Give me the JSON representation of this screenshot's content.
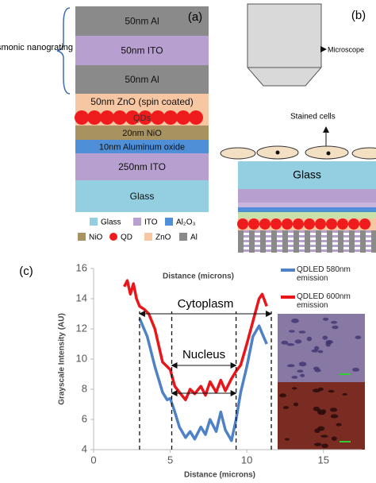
{
  "panel_a": {
    "label": "(a)",
    "bracket_label": "Plasmonic nanograting",
    "layers": [
      {
        "label": "50nm Al",
        "color": "#8a8a8a"
      },
      {
        "label": "50nm ITO",
        "color": "#b7a0d0"
      },
      {
        "label": "50nm Al",
        "color": "#8a8a8a"
      },
      {
        "label": "50nm ZnO (spin coated)",
        "color": "#f7c6a2"
      },
      {
        "label": "QDs",
        "color": "#ee1c1c"
      },
      {
        "label": "20nm NiO",
        "color": "#a8925f"
      },
      {
        "label": "10nm Aluminum oxide",
        "color": "#4e8fd8"
      },
      {
        "label": "250nm ITO",
        "color": "#b7a0d0"
      },
      {
        "label": "Glass",
        "color": "#93cfe0"
      }
    ],
    "legend": [
      {
        "label": "Glass",
        "color": "#93cfe0"
      },
      {
        "label": "ITO",
        "color": "#b7a0d0"
      },
      {
        "label": "Al₂O₃",
        "color": "#4e8fd8"
      },
      {
        "label": "NiO",
        "color": "#a8925f"
      },
      {
        "label": "QD",
        "color": "#ee1c1c"
      },
      {
        "label": "ZnO",
        "color": "#f7c6a2"
      },
      {
        "label": "Al",
        "color": "#8a8a8a"
      }
    ]
  },
  "panel_b": {
    "label": "(b)",
    "microscope_label": "Microscope",
    "cells_label": "Stained cells",
    "glass_label": "Glass"
  },
  "chart_data": {
    "type": "line",
    "panel_label": "(c)",
    "title": "Distance (microns)",
    "x_label": "Distance (microns)",
    "y_label": "Grayscale Intensity (AU)",
    "xlim": [
      0,
      17.5
    ],
    "ylim": [
      4,
      16
    ],
    "xticks": [
      0,
      5,
      10,
      15
    ],
    "yticks": [
      4,
      6,
      8,
      10,
      12,
      14,
      16
    ],
    "annotations": [
      "Cytoplasm",
      "Nucleus"
    ],
    "reference_lines": [
      3,
      5.1,
      9.3,
      11.6
    ],
    "series": [
      {
        "name": "QDLED 580nm emission",
        "color": "#4f81c7",
        "x": [
          3,
          3.5,
          4,
          4.5,
          4.8,
          5,
          5.3,
          5.6,
          6,
          6.3,
          6.6,
          7,
          7.3,
          7.6,
          8,
          8.3,
          8.6,
          9,
          9.3,
          9.6,
          10,
          10.4,
          10.8,
          11,
          11.3
        ],
        "values": [
          12.7,
          11.5,
          9.5,
          7.8,
          7.3,
          7.4,
          6.5,
          5.5,
          4.8,
          5.2,
          4.7,
          5.5,
          5,
          6,
          5.2,
          6.5,
          5.3,
          4.6,
          6,
          7.8,
          9.5,
          11.5,
          12.2,
          11.7,
          11
        ]
      },
      {
        "name": "QDLED 600nm emission",
        "color": "#e8161b",
        "x": [
          2,
          2.2,
          2.4,
          2.6,
          2.8,
          3,
          3.3,
          3.6,
          4,
          4.5,
          5,
          5.3,
          5.6,
          6,
          6.3,
          6.6,
          7,
          7.3,
          7.6,
          8,
          8.3,
          8.6,
          9,
          9.3,
          9.6,
          10,
          10.4,
          10.8,
          11,
          11.3
        ],
        "values": [
          14.8,
          15.2,
          14.3,
          15,
          14,
          13.5,
          13.3,
          13,
          12,
          9.8,
          9.3,
          8.2,
          7.8,
          7.3,
          8,
          7.7,
          8.2,
          7.6,
          8.5,
          7.8,
          8.6,
          7.9,
          8.7,
          9.2,
          9.6,
          11,
          12.5,
          14,
          14.3,
          13.5
        ]
      }
    ]
  }
}
